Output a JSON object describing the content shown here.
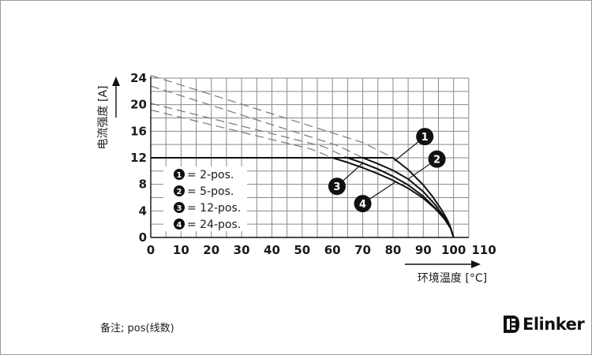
{
  "chart_data": {
    "type": "line",
    "xlabel": "环境温度 [°C]",
    "ylabel": "电流强度 [A]",
    "xlim": [
      0,
      110
    ],
    "ylim": [
      0,
      24
    ],
    "xticks": [
      0,
      10,
      20,
      30,
      40,
      50,
      60,
      70,
      80,
      90,
      100,
      110
    ],
    "yticks": [
      0,
      4,
      8,
      12,
      16,
      20,
      24
    ],
    "grid": true,
    "legend_position": "bottom-left inside plot",
    "series": [
      {
        "name": "2-pos.",
        "marker": "1",
        "style": "solid",
        "x": [
          0,
          80,
          85,
          90,
          93,
          96,
          98,
          99,
          100
        ],
        "y": [
          12,
          12,
          10.2,
          7.9,
          6.2,
          4.2,
          2.6,
          1.5,
          0
        ]
      },
      {
        "name": "5-pos.",
        "marker": "2",
        "style": "solid",
        "x": [
          0,
          70,
          75,
          80,
          85,
          90,
          94,
          97,
          99,
          100
        ],
        "y": [
          12,
          12,
          11.1,
          10.1,
          8.8,
          6.9,
          4.9,
          3.0,
          1.5,
          0
        ]
      },
      {
        "name": "12-pos.",
        "marker": "3",
        "style": "solid",
        "x": [
          0,
          65,
          70,
          75,
          80,
          85,
          90,
          94,
          97,
          99,
          100
        ],
        "y": [
          12,
          12,
          11.2,
          10.3,
          9.2,
          7.9,
          6.2,
          4.4,
          2.8,
          1.4,
          0
        ]
      },
      {
        "name": "24-pos.",
        "marker": "4",
        "style": "solid",
        "x": [
          0,
          60,
          65,
          70,
          75,
          80,
          85,
          90,
          94,
          97,
          99,
          100
        ],
        "y": [
          12,
          12,
          11.3,
          10.5,
          9.6,
          8.6,
          7.4,
          5.9,
          4.3,
          2.8,
          1.4,
          0
        ]
      }
    ],
    "dashed_extensions": [
      {
        "x": [
          0,
          70,
          80
        ],
        "y": [
          24.4,
          14.3,
          12
        ]
      },
      {
        "x": [
          0,
          62,
          70
        ],
        "y": [
          22.8,
          13.8,
          12
        ]
      },
      {
        "x": [
          0,
          57,
          65
        ],
        "y": [
          20.2,
          13.7,
          12
        ]
      },
      {
        "x": [
          0,
          53,
          60
        ],
        "y": [
          19.2,
          13.3,
          12
        ]
      }
    ],
    "legend": [
      {
        "marker": "1",
        "label": "= 2-pos."
      },
      {
        "marker": "2",
        "label": "= 5-pos."
      },
      {
        "marker": "3",
        "label": "= 12-pos."
      },
      {
        "marker": "4",
        "label": "= 24-pos."
      }
    ],
    "callouts": [
      {
        "marker": "1",
        "x": 90.5,
        "y": 15.2,
        "target_x": 80.5,
        "target_y": 11.5
      },
      {
        "marker": "2",
        "x": 94.5,
        "y": 11.8,
        "target_x": 85,
        "target_y": 8.8
      },
      {
        "marker": "3",
        "x": 61.5,
        "y": 7.7,
        "target_x": 70,
        "target_y": 11.2
      },
      {
        "marker": "4",
        "x": 70,
        "y": 5.1,
        "target_x": 81,
        "target_y": 8.4
      }
    ]
  },
  "note": "备注; pos(线数)",
  "logo": {
    "text": "Elinker",
    "color": "#111111"
  },
  "colors": {
    "grid": "#8a8a8a",
    "line": "#111111",
    "dashed": "#777777",
    "background": "#ffffff"
  }
}
